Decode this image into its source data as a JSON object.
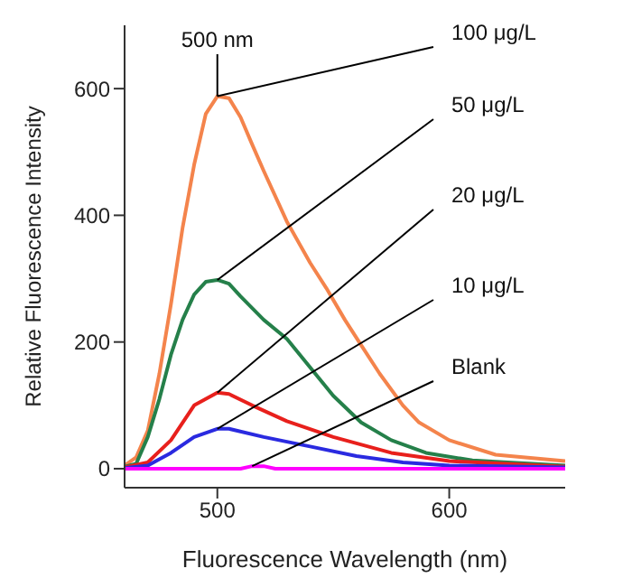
{
  "chart_data": {
    "type": "line",
    "xlabel": "Fluorescence Wavelength (nm)",
    "ylabel": "Relative Fluorescence Intensity",
    "xlim": [
      460,
      650
    ],
    "ylim": [
      -30,
      700
    ],
    "xticks": [
      500,
      600
    ],
    "yticks": [
      0,
      200,
      400,
      600
    ],
    "marker": "none",
    "annotations": [
      {
        "text": "500 nm",
        "x": 500,
        "y": 588
      }
    ],
    "series": [
      {
        "name": "100 μg/L",
        "color": "#f4844c",
        "x": [
          460,
          465,
          470,
          475,
          480,
          485,
          490,
          495,
          500,
          505,
          510,
          515,
          520,
          530,
          540,
          547,
          555,
          562,
          570,
          580,
          587,
          600,
          620,
          650
        ],
        "values": [
          5,
          18,
          60,
          150,
          260,
          380,
          480,
          560,
          588,
          585,
          555,
          512,
          470,
          390,
          325,
          285,
          235,
          195,
          150,
          100,
          73,
          45,
          22,
          12
        ]
      },
      {
        "name": "50 μg/L",
        "color": "#25804a",
        "x": [
          460,
          465,
          470,
          475,
          480,
          485,
          490,
          495,
          500,
          505,
          510,
          520,
          530,
          540,
          550,
          562,
          575,
          590,
          610,
          650
        ],
        "values": [
          3,
          8,
          50,
          110,
          180,
          235,
          275,
          295,
          298,
          292,
          272,
          235,
          205,
          160,
          115,
          73,
          45,
          25,
          13,
          5
        ]
      },
      {
        "name": "20 μg/L",
        "color": "#e8201c",
        "x": [
          460,
          470,
          480,
          490,
          500,
          505,
          515,
          530,
          550,
          575,
          600,
          650
        ],
        "values": [
          2,
          10,
          45,
          100,
          120,
          118,
          100,
          75,
          50,
          25,
          12,
          3
        ]
      },
      {
        "name": "10 μg/L",
        "color": "#2a2ae0",
        "x": [
          460,
          470,
          480,
          490,
          500,
          505,
          520,
          540,
          560,
          580,
          600,
          650
        ],
        "values": [
          1,
          5,
          25,
          50,
          63,
          63,
          50,
          35,
          20,
          10,
          5,
          2
        ]
      },
      {
        "name": "Blank",
        "color": "#ff00ff",
        "x": [
          460,
          510,
          515,
          520,
          525,
          650
        ],
        "values": [
          0,
          0,
          4,
          4,
          0,
          0
        ]
      }
    ]
  }
}
